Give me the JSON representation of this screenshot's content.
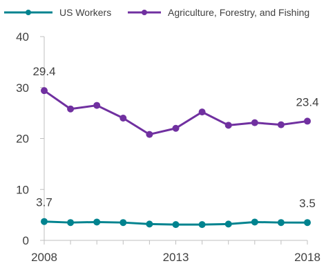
{
  "chart_data": {
    "type": "line",
    "x": [
      2008,
      2009,
      2010,
      2011,
      2012,
      2013,
      2014,
      2015,
      2016,
      2017,
      2018
    ],
    "x_tick_labels": [
      "2008",
      "2013",
      "2018"
    ],
    "x_tick_values": [
      2008,
      2013,
      2018
    ],
    "y_ticks": [
      0,
      10,
      20,
      30,
      40
    ],
    "y_tick_labels": [
      "0",
      "10",
      "20",
      "30",
      "40"
    ],
    "ylim": [
      0,
      40
    ],
    "grid": false,
    "legend_position": "top",
    "series": [
      {
        "name": "US Workers",
        "color": "#00838f",
        "values": [
          3.7,
          3.5,
          3.6,
          3.5,
          3.2,
          3.1,
          3.1,
          3.2,
          3.6,
          3.5,
          3.5
        ],
        "labels": [
          {
            "index": 0,
            "text": "3.7"
          },
          {
            "index": 10,
            "text": "3.5"
          }
        ]
      },
      {
        "name": "Agriculture, Forestry, and Fishing",
        "color": "#7030a0",
        "values": [
          29.4,
          25.8,
          26.5,
          24.0,
          20.8,
          22.0,
          25.2,
          22.6,
          23.1,
          22.7,
          23.4
        ],
        "labels": [
          {
            "index": 0,
            "text": "29.4"
          },
          {
            "index": 10,
            "text": "23.4"
          }
        ]
      }
    ]
  }
}
